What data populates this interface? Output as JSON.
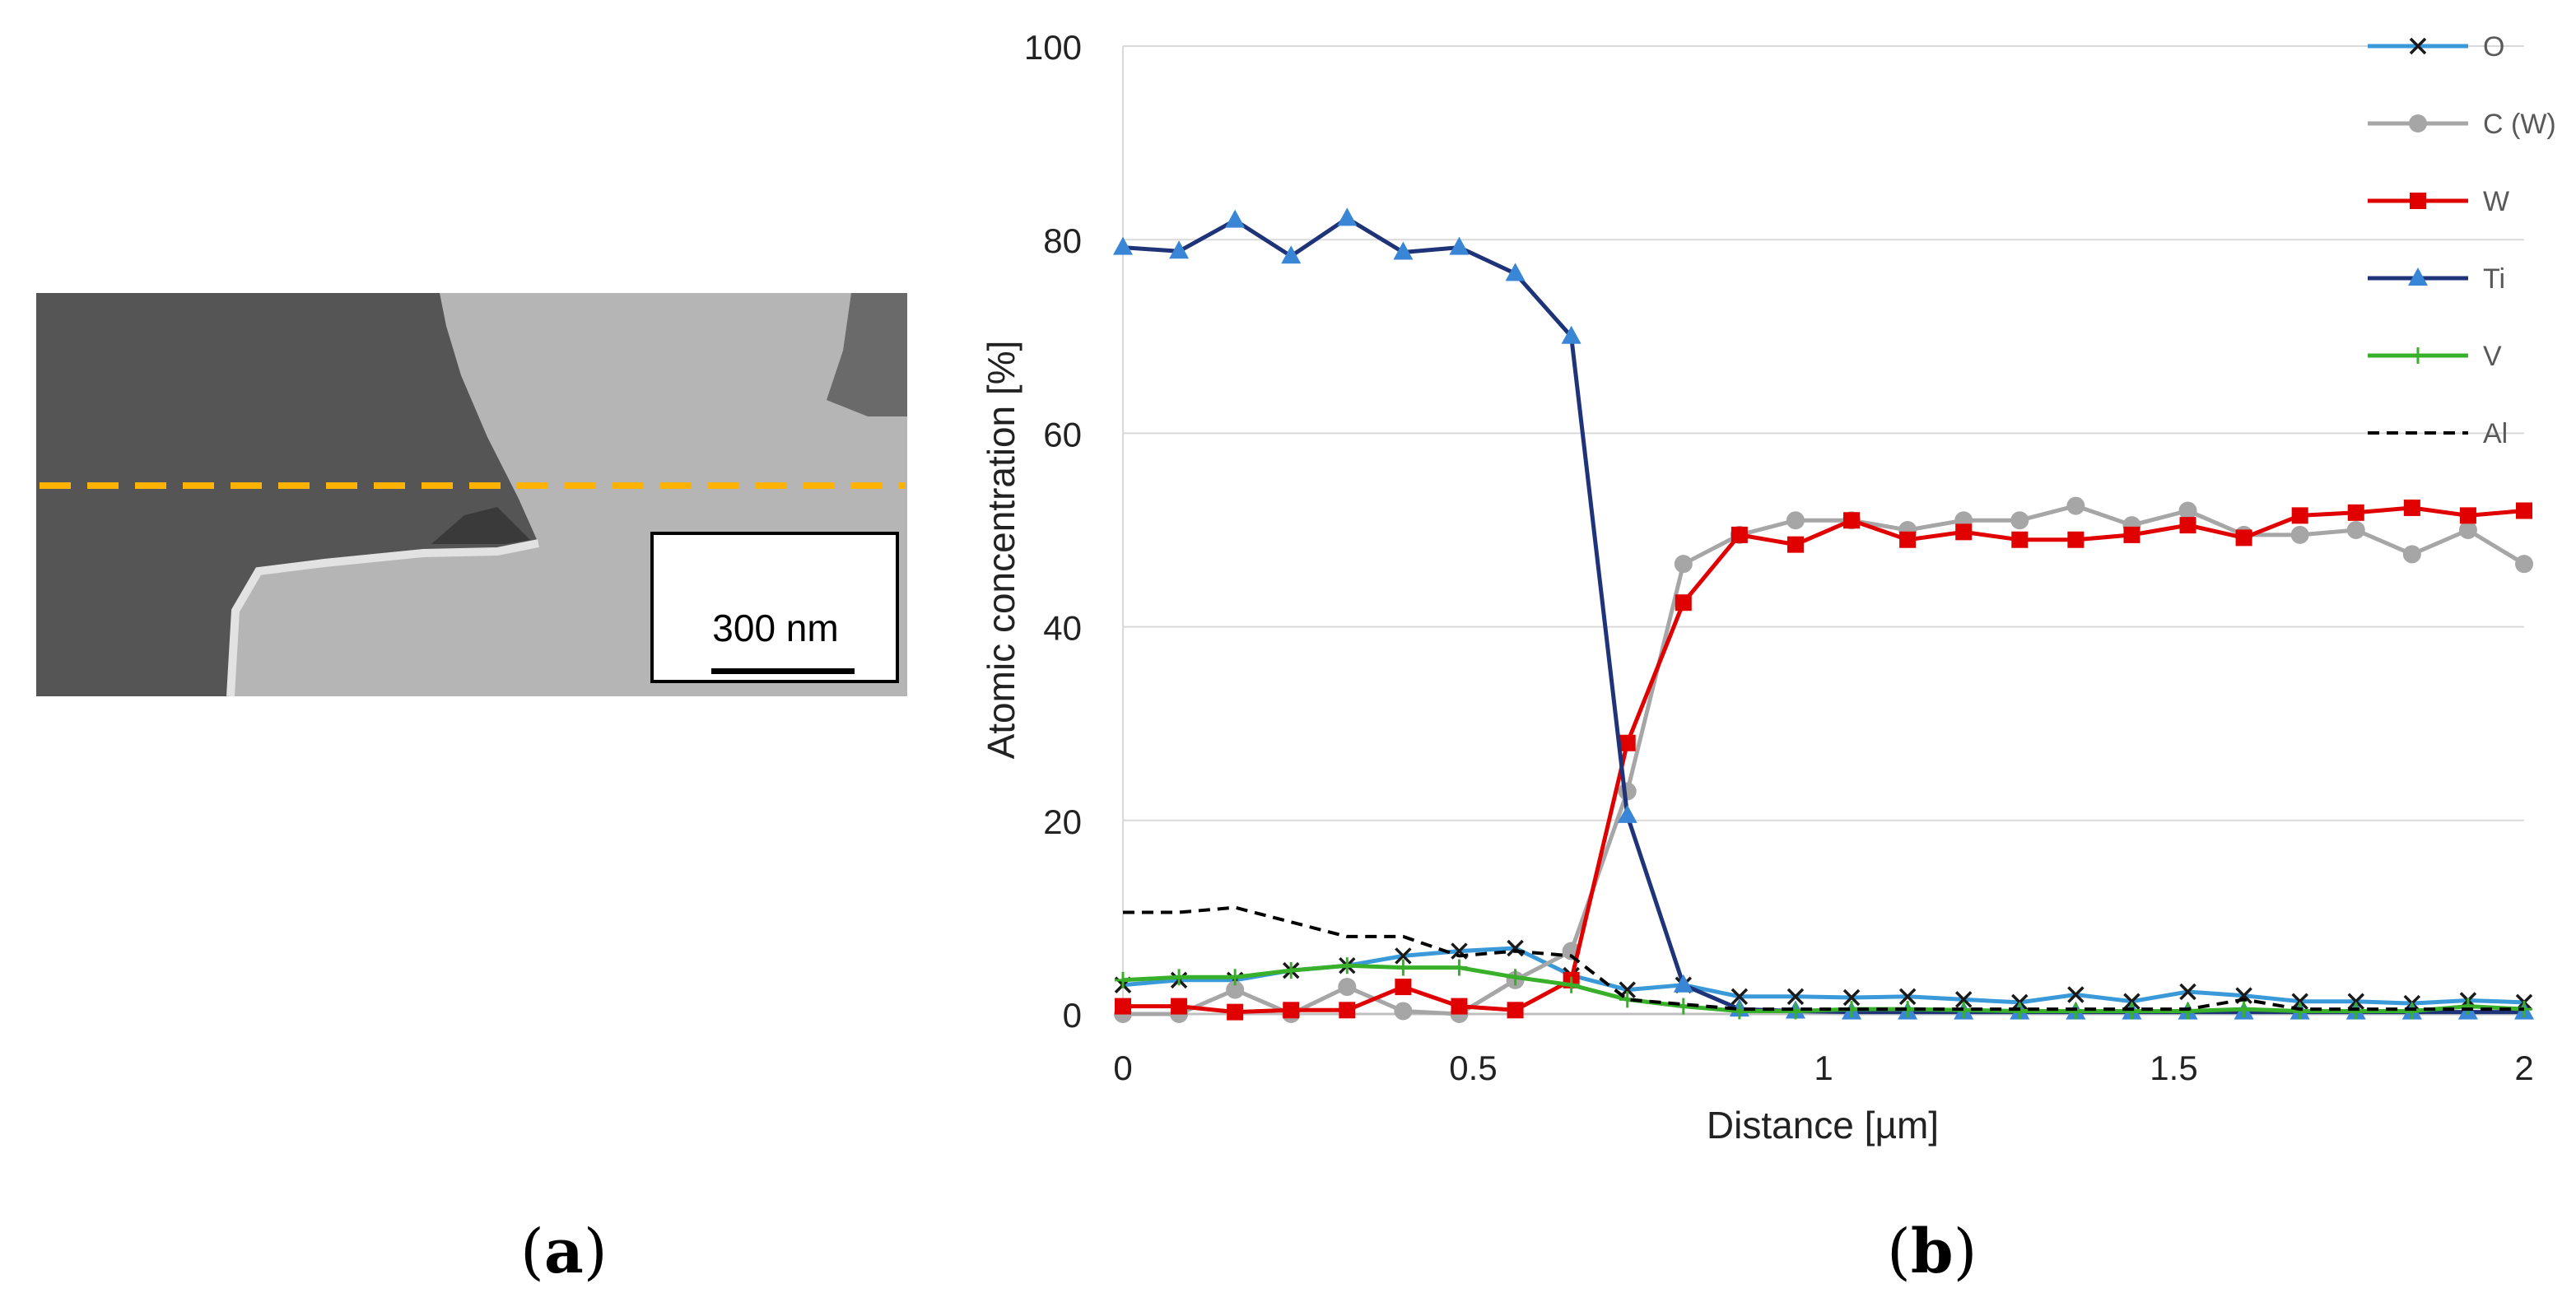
{
  "panels": {
    "a": "a",
    "b": "b"
  },
  "sem_image": {
    "scale_bar_label": "300 nm",
    "line_color": "#ffb300"
  },
  "chart_data": {
    "type": "line",
    "title": "",
    "xlabel": "Distance [µm]",
    "ylabel": "Atomic concentration [%]",
    "xlim": [
      0,
      2
    ],
    "ylim": [
      0,
      100
    ],
    "xticks": [
      0,
      0.5,
      1,
      1.5,
      2
    ],
    "xtick_labels": [
      "0",
      "0.5",
      "1",
      "1.5",
      "2"
    ],
    "yticks": [
      0,
      20,
      40,
      60,
      80,
      100
    ],
    "ytick_labels": [
      "0",
      "20",
      "40",
      "60",
      "80",
      "100"
    ],
    "grid": "horizontal",
    "legend_position": "right",
    "x": [
      0,
      0.08,
      0.16,
      0.24,
      0.32,
      0.4,
      0.48,
      0.56,
      0.64,
      0.72,
      0.8,
      0.88,
      0.96,
      1.04,
      1.12,
      1.2,
      1.28,
      1.36,
      1.44,
      1.52,
      1.6,
      1.68,
      1.76,
      1.84,
      1.92,
      2.0
    ],
    "series": [
      {
        "name": "O",
        "color": "#3a9ad9",
        "marker": "x",
        "dash": false,
        "values": [
          3.0,
          3.5,
          3.5,
          4.5,
          5.0,
          6.0,
          6.5,
          6.8,
          4.0,
          2.5,
          3.0,
          1.8,
          1.8,
          1.7,
          1.8,
          1.5,
          1.2,
          2.0,
          1.3,
          2.3,
          1.9,
          1.3,
          1.3,
          1.1,
          1.4,
          1.2
        ]
      },
      {
        "name": "C (W)",
        "color": "#a6a6a6",
        "marker": "circle",
        "dash": false,
        "values": [
          0.0,
          0.0,
          2.5,
          0.0,
          2.8,
          0.3,
          0.0,
          3.5,
          6.5,
          23.0,
          46.5,
          49.5,
          51.0,
          51.0,
          50.0,
          51.0,
          51.0,
          52.5,
          50.5,
          52.0,
          49.5,
          49.5,
          50.0,
          47.5,
          50.0,
          46.5
        ]
      },
      {
        "name": "W",
        "color": "#e00000",
        "marker": "square",
        "dash": false,
        "values": [
          0.8,
          0.8,
          0.2,
          0.4,
          0.4,
          2.8,
          0.8,
          0.4,
          3.5,
          28.0,
          42.5,
          49.5,
          48.5,
          51.0,
          49.0,
          49.8,
          49.0,
          49.0,
          49.5,
          50.5,
          49.2,
          51.5,
          51.8,
          52.3,
          51.5,
          52.0
        ]
      },
      {
        "name": "Ti",
        "color": "#1f3478",
        "marker": "triangle",
        "dash": false,
        "values": [
          79.2,
          78.8,
          82.0,
          78.3,
          82.2,
          78.7,
          79.2,
          76.5,
          70.0,
          20.5,
          3.0,
          0.5,
          0.3,
          0.2,
          0.2,
          0.2,
          0.2,
          0.2,
          0.2,
          0.2,
          0.2,
          0.2,
          0.2,
          0.2,
          0.2,
          0.2
        ]
      },
      {
        "name": "V",
        "color": "#38b02a",
        "marker": "plus",
        "dash": false,
        "values": [
          3.5,
          3.8,
          3.8,
          4.5,
          5.0,
          4.8,
          4.8,
          3.8,
          3.0,
          1.5,
          0.8,
          0.3,
          0.3,
          0.5,
          0.5,
          0.4,
          0.3,
          0.3,
          0.3,
          0.3,
          0.5,
          0.3,
          0.3,
          0.3,
          0.8,
          0.5
        ]
      },
      {
        "name": "Al",
        "color": "#000000",
        "marker": "none",
        "dash": true,
        "values": [
          10.5,
          10.5,
          11.0,
          9.5,
          8.0,
          8.0,
          6.0,
          6.5,
          6.0,
          1.5,
          1.0,
          0.5,
          0.5,
          0.5,
          0.5,
          0.5,
          0.5,
          0.5,
          0.5,
          0.5,
          1.5,
          0.5,
          0.5,
          0.5,
          0.5,
          0.5
        ]
      }
    ]
  }
}
